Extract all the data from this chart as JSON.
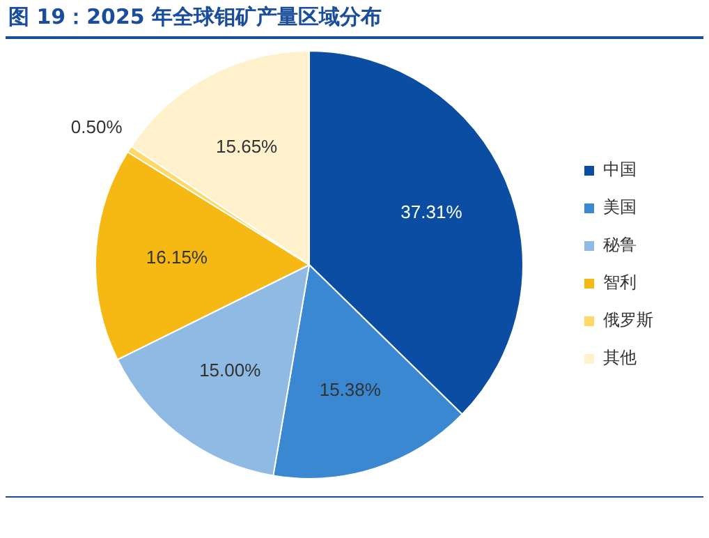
{
  "chart_data": {
    "type": "pie",
    "title": "图 19：2025 年全球钼矿产量区域分布",
    "categories": [
      "中国",
      "美国",
      "秘鲁",
      "智利",
      "俄罗斯",
      "其他"
    ],
    "values": [
      37.31,
      15.38,
      15.0,
      16.15,
      0.5,
      15.65
    ],
    "value_labels": [
      "37.31%",
      "15.38%",
      "15.00%",
      "16.15%",
      "0.50%",
      "15.65%"
    ],
    "colors": [
      "#0b4da2",
      "#3a87d2",
      "#8ebae4",
      "#f6b914",
      "#ffd866",
      "#fff1cc"
    ],
    "legend": "right"
  }
}
